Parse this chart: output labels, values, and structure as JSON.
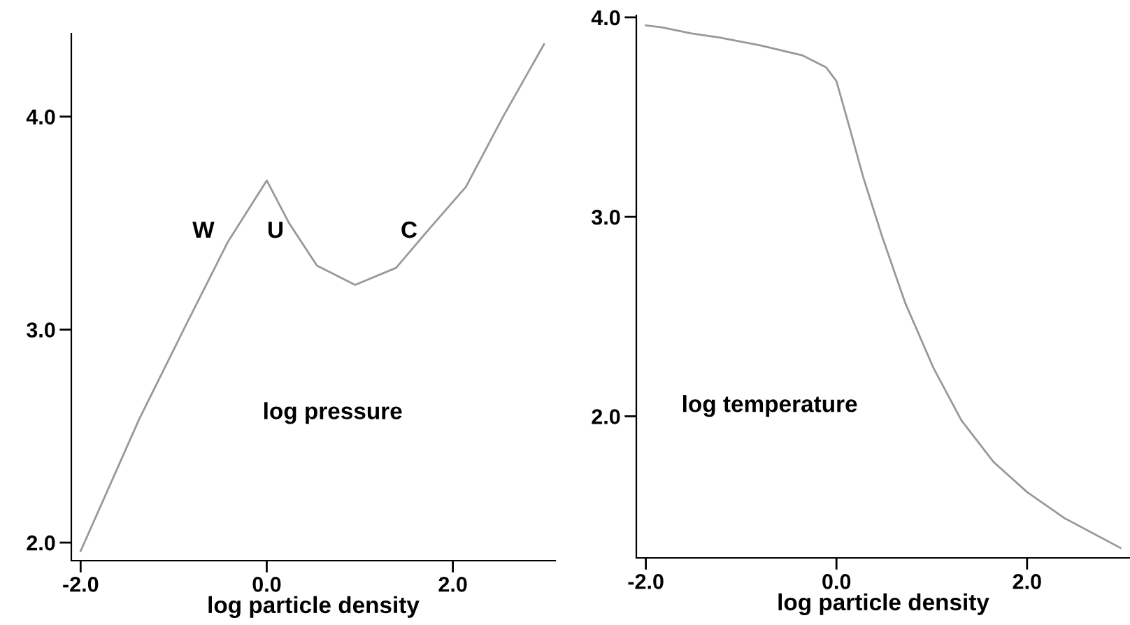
{
  "chart_data": [
    {
      "type": "line",
      "xlabel": "log particle density",
      "ylabel": "log pressure",
      "xlim": [
        -2.1,
        3.1
      ],
      "ylim": [
        1.915,
        4.39
      ],
      "xticks": [
        {
          "value": -2,
          "label": "-2.0"
        },
        {
          "value": 0,
          "label": "0.0"
        },
        {
          "value": 2,
          "label": "2.0"
        }
      ],
      "yticks": [
        {
          "value": 2,
          "label": "2.0"
        },
        {
          "value": 3,
          "label": "3.0"
        },
        {
          "value": 4,
          "label": "4.0"
        }
      ],
      "grid": false,
      "series": [
        {
          "color": "#999999",
          "x": [
            -2.0,
            -1.37,
            -0.87,
            -0.42,
            0.0,
            0.24,
            0.54,
            0.95,
            1.39,
            1.74,
            2.14,
            2.54,
            2.98
          ],
          "values": [
            1.96,
            2.58,
            3.02,
            3.41,
            3.7,
            3.5,
            3.3,
            3.21,
            3.29,
            3.47,
            3.67,
            4.0,
            4.34
          ]
        }
      ],
      "annotations": [
        "W",
        "U",
        "C"
      ]
    },
    {
      "type": "line",
      "xlabel": "log particle density",
      "ylabel": "log temperature",
      "xlim": [
        -2.1,
        3.08
      ],
      "ylim": [
        1.29,
        4.01
      ],
      "xticks": [
        {
          "value": -2,
          "label": "-2.0"
        },
        {
          "value": 0,
          "label": "0.0"
        },
        {
          "value": 2,
          "label": "2.0"
        }
      ],
      "yticks": [
        {
          "value": 2,
          "label": "2.0"
        },
        {
          "value": 3,
          "label": "3.0"
        },
        {
          "value": 4,
          "label": "4.0"
        }
      ],
      "grid": false,
      "series": [
        {
          "color": "#999999",
          "x": [
            -2.0,
            -1.83,
            -1.53,
            -1.24,
            -0.8,
            -0.36,
            -0.11,
            0.0,
            0.13,
            0.28,
            0.48,
            0.72,
            1.02,
            1.31,
            1.65,
            2.0,
            2.39,
            2.98
          ],
          "values": [
            3.96,
            3.95,
            3.92,
            3.9,
            3.86,
            3.81,
            3.75,
            3.68,
            3.46,
            3.2,
            2.9,
            2.57,
            2.24,
            1.98,
            1.77,
            1.62,
            1.49,
            1.34
          ]
        }
      ]
    }
  ]
}
